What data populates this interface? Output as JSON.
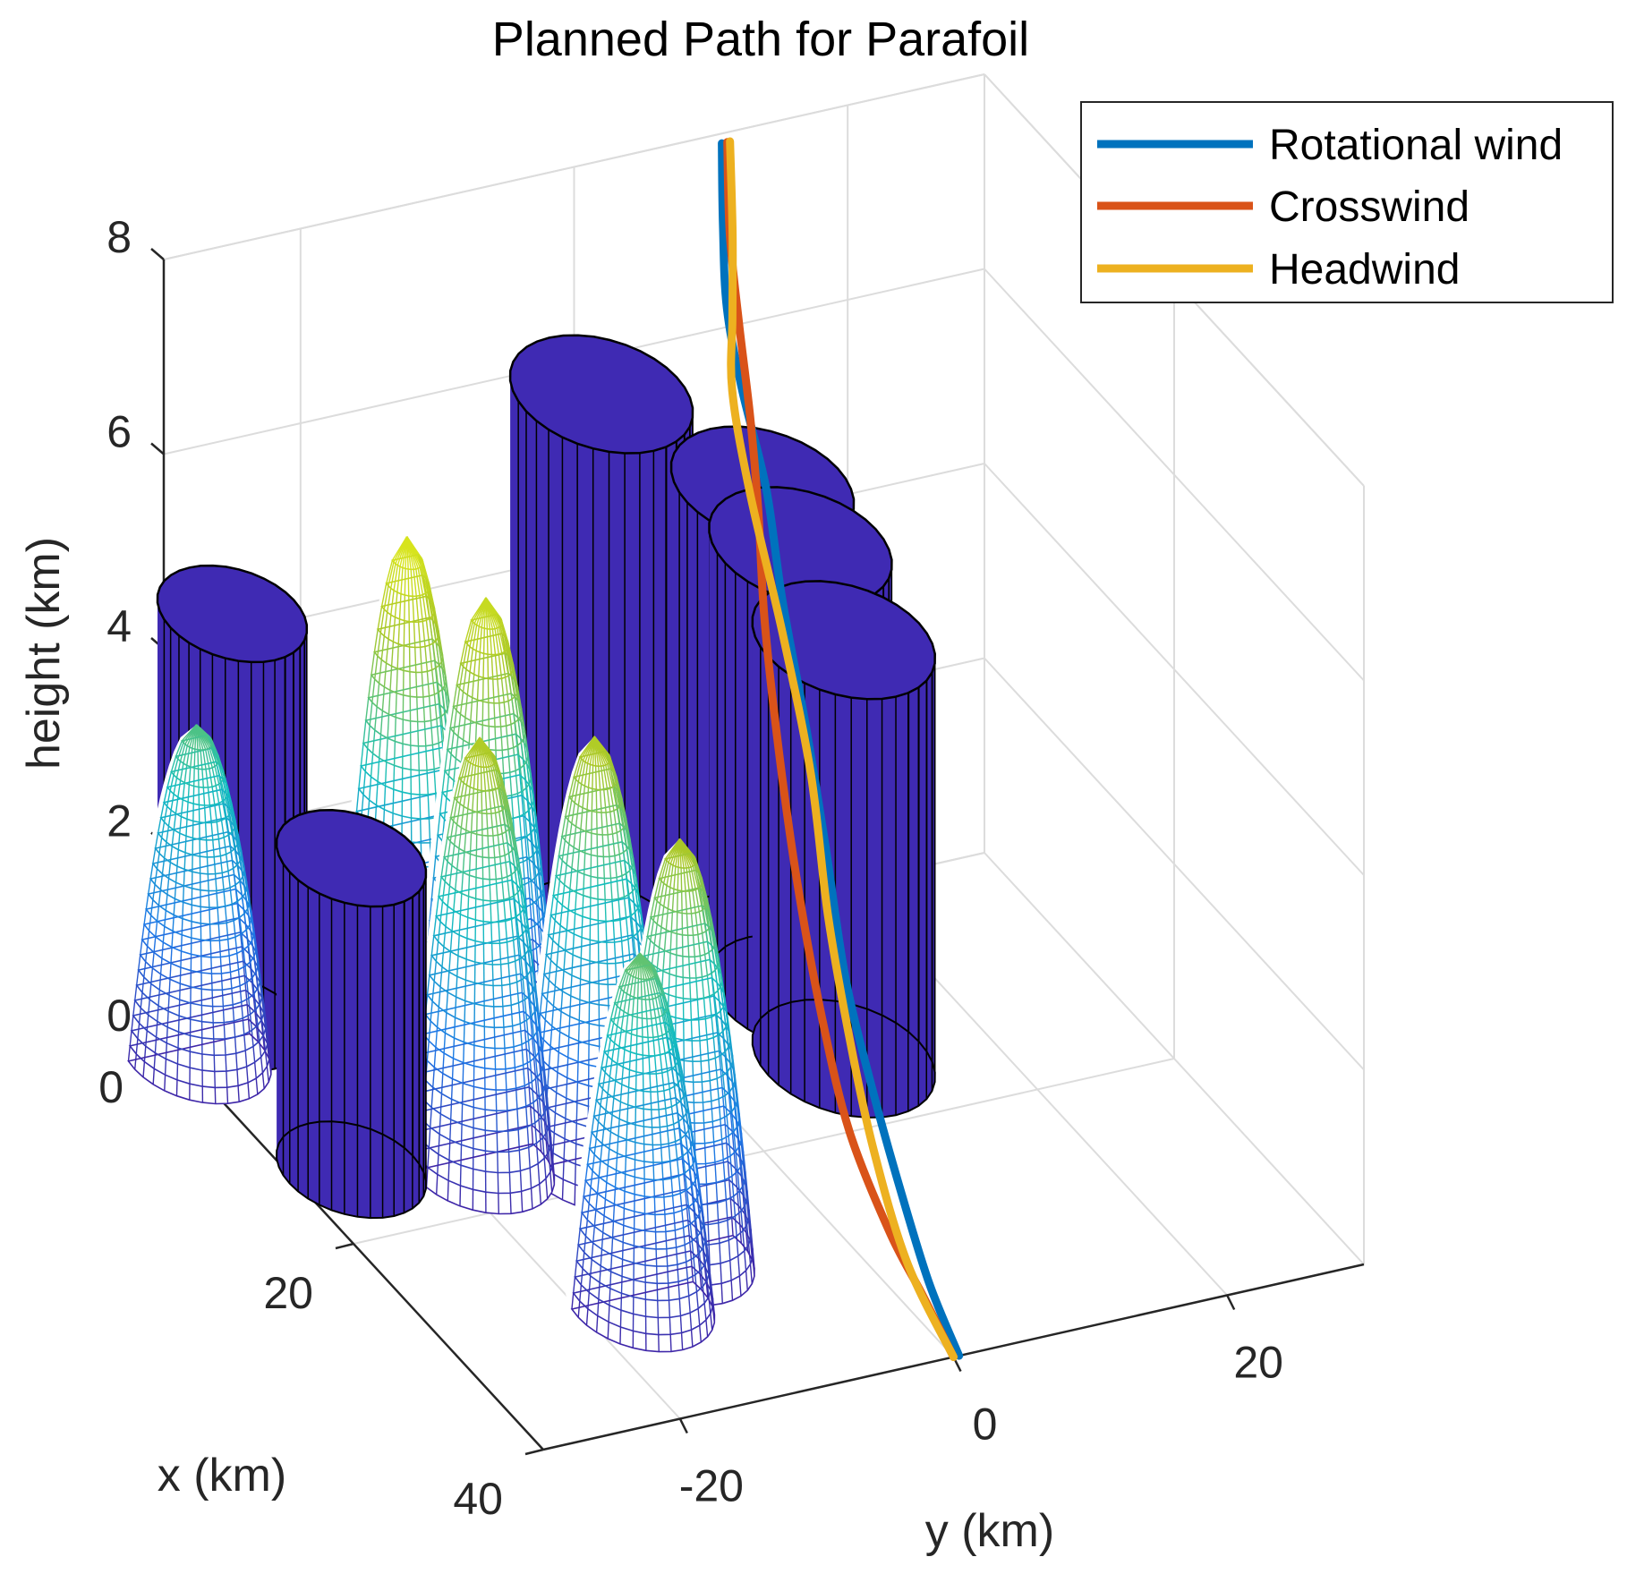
{
  "chart_data": {
    "type": "surface3d-with-lines",
    "title": "Planned Path for Parafoil",
    "xlabel": "x (km)",
    "ylabel": "y (km)",
    "zlabel": "height (km)",
    "xlim": [
      0,
      40
    ],
    "ylim": [
      -30,
      30
    ],
    "zlim": [
      0,
      8
    ],
    "x_ticks": [
      "0",
      "20",
      "40"
    ],
    "y_ticks": [
      "-20",
      "0",
      "20"
    ],
    "z_ticks": [
      "0",
      "2",
      "4",
      "6",
      "8"
    ],
    "grid": true,
    "legend_position": "top-right",
    "colormap": "parula",
    "cylinder_color": "#3F2AB3",
    "series": [
      {
        "name": "Rotational wind",
        "color": "#0072BD",
        "points": [
          [
            0,
            10.8,
            7.9
          ],
          [
            2,
            9.5,
            7.3
          ],
          [
            4,
            8.4,
            6.7
          ],
          [
            6,
            8.1,
            6.1
          ],
          [
            9,
            7.8,
            5.4
          ],
          [
            12,
            6.9,
            4.6
          ],
          [
            16,
            5.8,
            3.8
          ],
          [
            20,
            4.5,
            3.0
          ],
          [
            24,
            3.2,
            2.1
          ],
          [
            28,
            2.4,
            1.4
          ],
          [
            32,
            1.7,
            0.8
          ],
          [
            36,
            1.0,
            0.3
          ],
          [
            40,
            0.4,
            0.0
          ]
        ]
      },
      {
        "name": "Crosswind",
        "color": "#D95319",
        "points": [
          [
            0,
            11.2,
            7.9
          ],
          [
            2,
            10.0,
            7.2
          ],
          [
            4,
            9.3,
            6.5
          ],
          [
            6,
            8.7,
            5.8
          ],
          [
            8,
            7.9,
            5.1
          ],
          [
            11,
            6.3,
            4.3
          ],
          [
            15,
            4.6,
            3.4
          ],
          [
            19,
            3.2,
            2.5
          ],
          [
            23,
            2.2,
            1.6
          ],
          [
            27,
            1.4,
            0.9
          ],
          [
            32,
            0.9,
            0.4
          ],
          [
            36,
            0.5,
            0.2
          ],
          [
            40,
            0.0,
            0.0
          ]
        ]
      },
      {
        "name": "Headwind",
        "color": "#EDB120",
        "points": [
          [
            0,
            11.4,
            7.9
          ],
          [
            2,
            10.2,
            7.2
          ],
          [
            4,
            8.8,
            6.6
          ],
          [
            6,
            7.4,
            6.1
          ],
          [
            9,
            6.6,
            5.4
          ],
          [
            13,
            6.2,
            4.4
          ],
          [
            17,
            5.5,
            3.4
          ],
          [
            21,
            4.0,
            2.4
          ],
          [
            25,
            2.8,
            1.6
          ],
          [
            29,
            1.8,
            0.9
          ],
          [
            34,
            0.8,
            0.3
          ],
          [
            40,
            0.0,
            0.0
          ]
        ]
      }
    ],
    "obstacles": [
      {
        "kind": "paraboloid",
        "cx": 2,
        "cy": -29,
        "r": 4.5,
        "h": 3.4
      },
      {
        "kind": "cylinder",
        "cx": 0,
        "cy": -25,
        "r": 4.5,
        "h": 4.2
      },
      {
        "kind": "cylinder",
        "cx": 14,
        "cy": -26,
        "r": 4.5,
        "h": 3.2
      },
      {
        "kind": "paraboloid",
        "cx": 4,
        "cy": -15,
        "r": 4.5,
        "h": 5.1
      },
      {
        "kind": "paraboloid",
        "cx": 8,
        "cy": -12,
        "r": 4.5,
        "h": 4.8
      },
      {
        "kind": "paraboloid",
        "cx": 16,
        "cy": -18,
        "r": 4.5,
        "h": 4.4
      },
      {
        "kind": "paraboloid",
        "cx": 18,
        "cy": -11,
        "r": 4.5,
        "h": 4.4
      },
      {
        "kind": "paraboloid",
        "cx": 30,
        "cy": -16,
        "r": 4.5,
        "h": 3.6
      },
      {
        "kind": "paraboloid",
        "cx": 27,
        "cy": -11,
        "r": 4.5,
        "h": 4.3
      },
      {
        "kind": "cylinder",
        "cx": 0,
        "cy": 2,
        "r": 5.5,
        "h": 5.6
      },
      {
        "kind": "cylinder",
        "cx": 4,
        "cy": 11,
        "r": 5.5,
        "h": 4.8
      },
      {
        "kind": "cylinder",
        "cx": 8,
        "cy": 11,
        "r": 5.5,
        "h": 4.6
      },
      {
        "kind": "cylinder",
        "cx": 14,
        "cy": 10,
        "r": 5.5,
        "h": 4.3
      }
    ]
  }
}
